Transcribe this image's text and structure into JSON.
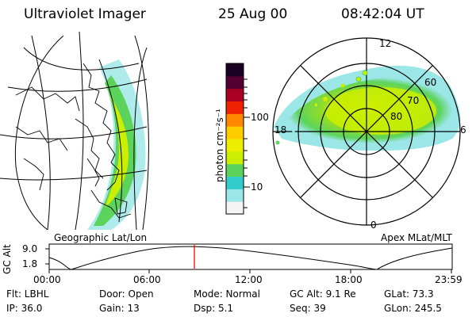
{
  "header": {
    "title": "Ultraviolet Imager",
    "date": "25 Aug 00",
    "time": "08:42:04 UT"
  },
  "colorbar": {
    "unit_label": "photon cm⁻²s⁻¹",
    "scale": "log",
    "tick_labels": [
      "100",
      "10"
    ],
    "colors": [
      "#f4f4f4",
      "#9be6e6",
      "#33cccc",
      "#5cd45c",
      "#ccee00",
      "#eeee00",
      "#ffcc00",
      "#ff8800",
      "#ee2200",
      "#aa0022",
      "#550033",
      "#1a0022"
    ]
  },
  "polar_plot": {
    "mlt_labels": {
      "top": "12",
      "left": "18",
      "right": "6",
      "bottom": "0"
    },
    "lat_labels": [
      "80",
      "70",
      "60"
    ],
    "caption": "Apex MLat/MLT"
  },
  "geo_plot": {
    "caption": "Geographic Lat/Lon"
  },
  "altitude_plot": {
    "ylabel": "GC Alt",
    "y_ticks": [
      "9.0",
      "1.8"
    ],
    "x_ticks": [
      "00:00",
      "06:00",
      "12:00",
      "18:00",
      "23:59"
    ],
    "marker_color": "#ff0000"
  },
  "status": {
    "flt": "Flt: LBHL",
    "door": "Door: Open",
    "mode": "Mode: Normal",
    "gc_alt": "GC Alt: 9.1 Re",
    "glat": "GLat: 73.3",
    "ip": "IP: 36.0",
    "gain": "Gain: 13",
    "dsp": "Dsp:    5.1",
    "seq": "Seq: 39",
    "glon": "GLon: 245.5"
  }
}
